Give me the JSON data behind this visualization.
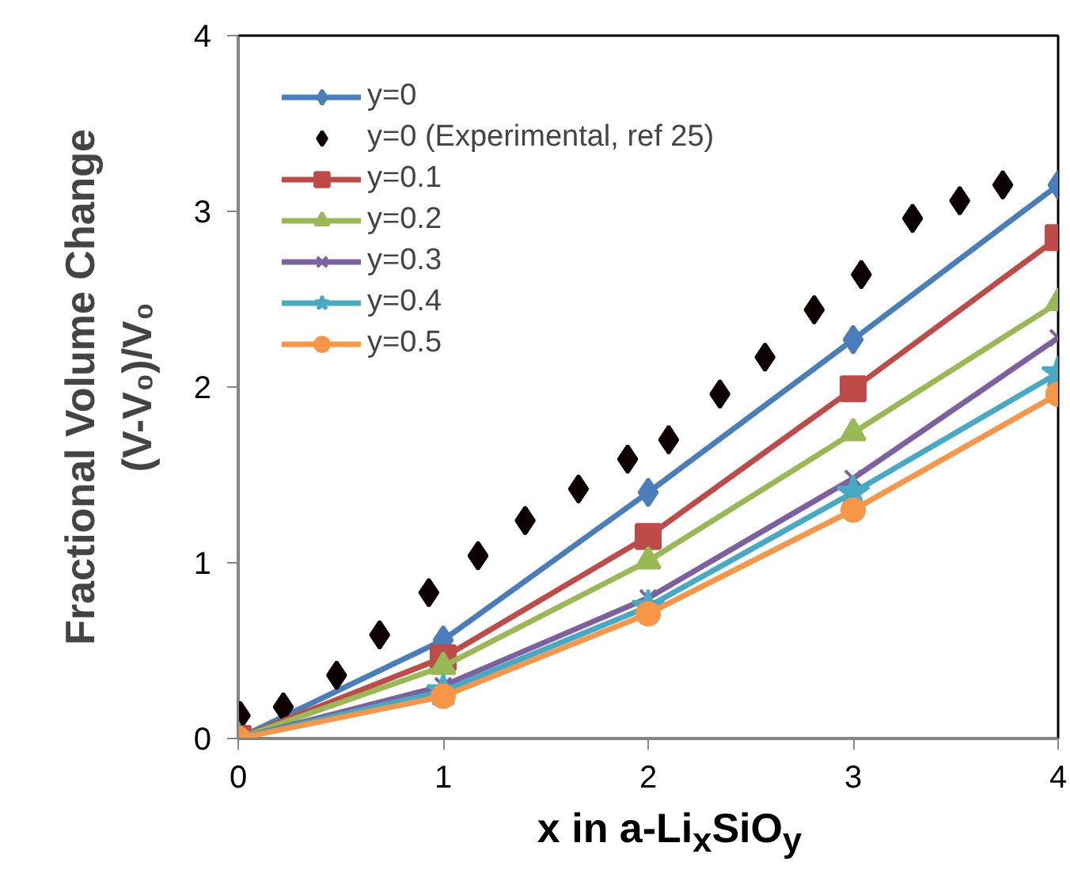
{
  "chart_data": {
    "type": "line",
    "xlabel": "x in a-Li$_{x}$SiO$_{y}$",
    "ylabel": "Fractional Volume Change\n(V-V₀)/V₀",
    "xlim": [
      0,
      4
    ],
    "ylim": [
      0,
      4
    ],
    "xticks": [
      0,
      1,
      2,
      3,
      4
    ],
    "yticks": [
      0,
      1,
      2,
      3,
      4
    ],
    "grid": false,
    "legend": "top left",
    "line_style": "solid",
    "series": [
      {
        "name": "y=0",
        "color": "#4a7ebb",
        "marker": "diamond",
        "x": [
          0,
          1,
          2,
          3,
          4
        ],
        "values": [
          0,
          0.56,
          1.4,
          2.27,
          3.15
        ]
      },
      {
        "name": "y=0 (Experimental, ref 25)",
        "type": "scatter",
        "color": "#0d0000",
        "marker": "diamond",
        "x": [
          0.01,
          0.22,
          0.48,
          0.69,
          0.93,
          1.17,
          1.4,
          1.66,
          1.9,
          2.1,
          2.35,
          2.57,
          2.81,
          3.04,
          3.29,
          3.52,
          3.73
        ],
        "values": [
          0.13,
          0.18,
          0.36,
          0.59,
          0.83,
          1.04,
          1.24,
          1.42,
          1.59,
          1.7,
          1.96,
          2.17,
          2.44,
          2.64,
          2.96,
          3.06,
          3.15
        ]
      },
      {
        "name": "y=0.1",
        "color": "#be4b48",
        "marker": "square",
        "x": [
          0,
          1,
          2,
          3,
          4
        ],
        "values": [
          0,
          0.46,
          1.15,
          1.99,
          2.85
        ]
      },
      {
        "name": "y=0.2",
        "color": "#98b954",
        "marker": "triangle",
        "x": [
          0,
          1,
          2,
          3,
          4
        ],
        "values": [
          0,
          0.41,
          1.01,
          1.74,
          2.48
        ]
      },
      {
        "name": "y=0.3",
        "color": "#7d60a0",
        "marker": "cross",
        "x": [
          0,
          1,
          2,
          3,
          4
        ],
        "values": [
          0,
          0.3,
          0.8,
          1.48,
          2.28
        ]
      },
      {
        "name": "y=0.4",
        "color": "#46aac5",
        "marker": "star",
        "x": [
          0,
          1,
          2,
          3,
          4
        ],
        "values": [
          0,
          0.27,
          0.75,
          1.4,
          2.08
        ]
      },
      {
        "name": "y=0.5",
        "color": "#f79646",
        "marker": "circle",
        "x": [
          0,
          1,
          2,
          3,
          4
        ],
        "values": [
          0,
          0.24,
          0.71,
          1.3,
          1.96
        ]
      }
    ]
  }
}
